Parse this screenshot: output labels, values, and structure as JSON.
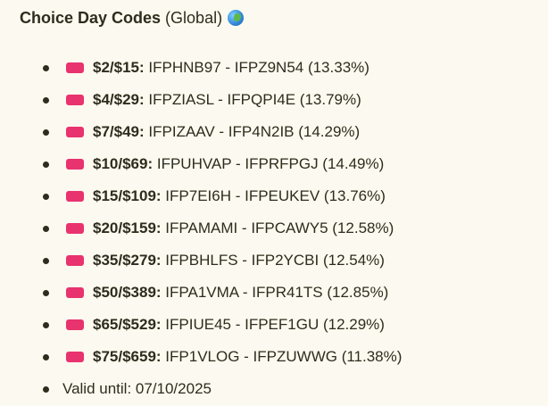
{
  "header": {
    "title_bold": "Choice Day Codes",
    "title_rest": " (Global)",
    "icon": "globe-icon"
  },
  "items": [
    {
      "label": "$2/$15:",
      "codes": " IFPHNB97 - IFPZ9N54 (13.33%)"
    },
    {
      "label": "$4/$29:",
      "codes": " IFPZIASL - IFPQPI4E (13.79%)"
    },
    {
      "label": "$7/$49:",
      "codes": " IFPIZAAV - IFP4N2IB (14.29%)"
    },
    {
      "label": "$10/$69:",
      "codes": " IFPUHVAP - IFPRFPGJ (14.49%)"
    },
    {
      "label": "$15/$109:",
      "codes": " IFP7EI6H - IFPEUKEV (13.76%)"
    },
    {
      "label": "$20/$159:",
      "codes": " IFPAMAMI - IFPCAWY5 (12.58%)"
    },
    {
      "label": "$35/$279:",
      "codes": " IFPBHLFS - IFP2YCBI (12.54%)"
    },
    {
      "label": "$50/$389:",
      "codes": " IFPA1VMA - IFPR41TS (12.85%)"
    },
    {
      "label": "$65/$529:",
      "codes": " IFPIUE45 - IFPEF1GU (12.29%)"
    },
    {
      "label": "$75/$659:",
      "codes": " IFP1VLOG - IFPZUWWG (11.38%)"
    }
  ],
  "valid_until": "Valid until: 07/10/2025",
  "colors": {
    "ticket": "#e8336f",
    "background": "#fcfaf0",
    "text": "#2e2c1c"
  }
}
